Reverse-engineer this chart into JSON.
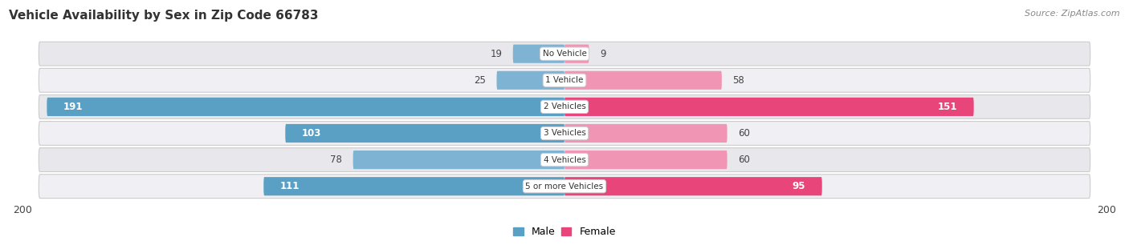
{
  "title": "Vehicle Availability by Sex in Zip Code 66783",
  "source": "Source: ZipAtlas.com",
  "categories": [
    "No Vehicle",
    "1 Vehicle",
    "2 Vehicles",
    "3 Vehicles",
    "4 Vehicles",
    "5 or more Vehicles"
  ],
  "male_values": [
    19,
    25,
    191,
    103,
    78,
    111
  ],
  "female_values": [
    9,
    58,
    151,
    60,
    60,
    95
  ],
  "male_color": "#7fb3d3",
  "male_color_strong": "#5a9fc4",
  "female_color": "#f096b4",
  "female_color_strong": "#e8457a",
  "axis_max": 200,
  "background_color": "#ffffff",
  "row_color_even": "#e8e8ec",
  "row_color_odd": "#f0f0f4",
  "label_threshold": 80,
  "title_fontsize": 11,
  "source_fontsize": 8,
  "bar_label_fontsize": 8.5,
  "cat_label_fontsize": 7.5,
  "axis_tick_fontsize": 9
}
